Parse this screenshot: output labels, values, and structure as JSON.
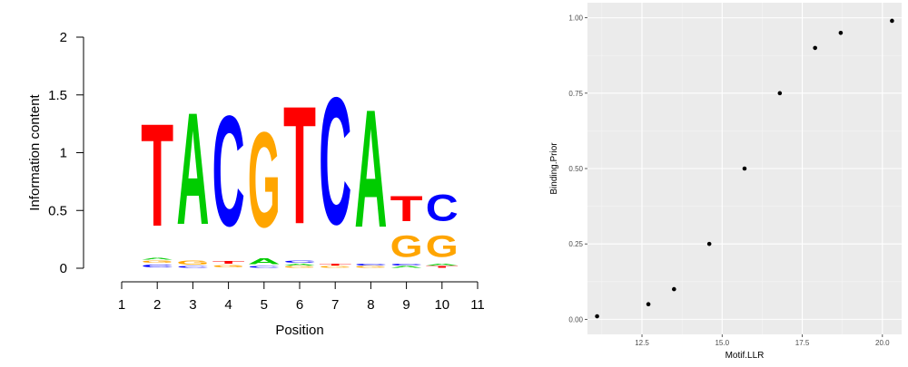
{
  "chart_data": [
    {
      "type": "sequence-logo",
      "xlabel": "Position",
      "ylabel": "Information content",
      "ylim": [
        0,
        2
      ],
      "yticks": [
        "0",
        "0.5",
        "1",
        "1.5",
        "2"
      ],
      "xticks": [
        "1",
        "2",
        "3",
        "4",
        "5",
        "6",
        "7",
        "8",
        "9",
        "10",
        "11"
      ],
      "colors": {
        "A": "#00cc00",
        "C": "#0000ff",
        "G": "#ffa500",
        "T": "#ff0000"
      },
      "positions": [
        {
          "pos": 2,
          "stack": [
            {
              "letter": "C",
              "bits": 0.04
            },
            {
              "letter": "G",
              "bits": 0.03
            },
            {
              "letter": "A",
              "bits": 0.02
            },
            {
              "letter": "T",
              "bits": 1.42
            }
          ]
        },
        {
          "pos": 3,
          "stack": [
            {
              "letter": "C",
              "bits": 0.02
            },
            {
              "letter": "G",
              "bits": 0.06
            },
            {
              "letter": "A",
              "bits": 1.55
            }
          ]
        },
        {
          "pos": 4,
          "stack": [
            {
              "letter": "G",
              "bits": 0.03
            },
            {
              "letter": "T",
              "bits": 0.04
            },
            {
              "letter": "C",
              "bits": 1.53
            }
          ]
        },
        {
          "pos": 5,
          "stack": [
            {
              "letter": "C",
              "bits": 0.02
            },
            {
              "letter": "A",
              "bits": 0.08
            },
            {
              "letter": "G",
              "bits": 1.32
            }
          ]
        },
        {
          "pos": 6,
          "stack": [
            {
              "letter": "G",
              "bits": 0.02
            },
            {
              "letter": "A",
              "bits": 0.02
            },
            {
              "letter": "C",
              "bits": 0.03
            },
            {
              "letter": "T",
              "bits": 1.63
            }
          ]
        },
        {
          "pos": 7,
          "stack": [
            {
              "letter": "G",
              "bits": 0.02
            },
            {
              "letter": "T",
              "bits": 0.02
            },
            {
              "letter": "C",
              "bits": 1.76
            }
          ]
        },
        {
          "pos": 8,
          "stack": [
            {
              "letter": "G",
              "bits": 0.02
            },
            {
              "letter": "C",
              "bits": 0.02
            },
            {
              "letter": "A",
              "bits": 1.63
            }
          ]
        },
        {
          "pos": 9,
          "stack": [
            {
              "letter": "A",
              "bits": 0.02
            },
            {
              "letter": "C",
              "bits": 0.02
            },
            {
              "letter": "G",
              "bits": 0.3
            },
            {
              "letter": "T",
              "bits": 0.35
            }
          ]
        },
        {
          "pos": 10,
          "stack": [
            {
              "letter": "T",
              "bits": 0.02
            },
            {
              "letter": "A",
              "bits": 0.02
            },
            {
              "letter": "G",
              "bits": 0.3
            },
            {
              "letter": "C",
              "bits": 0.37
            }
          ]
        }
      ]
    },
    {
      "type": "scatter",
      "xlabel": "Motif.LLR",
      "ylabel": "Binding.Prior",
      "xlim": [
        10.8,
        20.6
      ],
      "ylim": [
        -0.05,
        1.05
      ],
      "xticks": [
        12.5,
        15.0,
        17.5,
        20.0
      ],
      "xtick_labels": [
        "12.5",
        "15.0",
        "17.5",
        "20.0"
      ],
      "yticks": [
        0,
        0.25,
        0.5,
        0.75,
        1.0
      ],
      "ytick_labels": [
        "0.00",
        "0.25",
        "0.50",
        "0.75",
        "1.00"
      ],
      "grid": true,
      "background": "#ebebeb",
      "points": [
        {
          "x": 11.1,
          "y": 0.01
        },
        {
          "x": 12.7,
          "y": 0.05
        },
        {
          "x": 13.5,
          "y": 0.1
        },
        {
          "x": 14.6,
          "y": 0.25
        },
        {
          "x": 15.7,
          "y": 0.5
        },
        {
          "x": 16.8,
          "y": 0.75
        },
        {
          "x": 17.9,
          "y": 0.9
        },
        {
          "x": 18.7,
          "y": 0.95
        },
        {
          "x": 20.3,
          "y": 0.99
        }
      ]
    }
  ]
}
